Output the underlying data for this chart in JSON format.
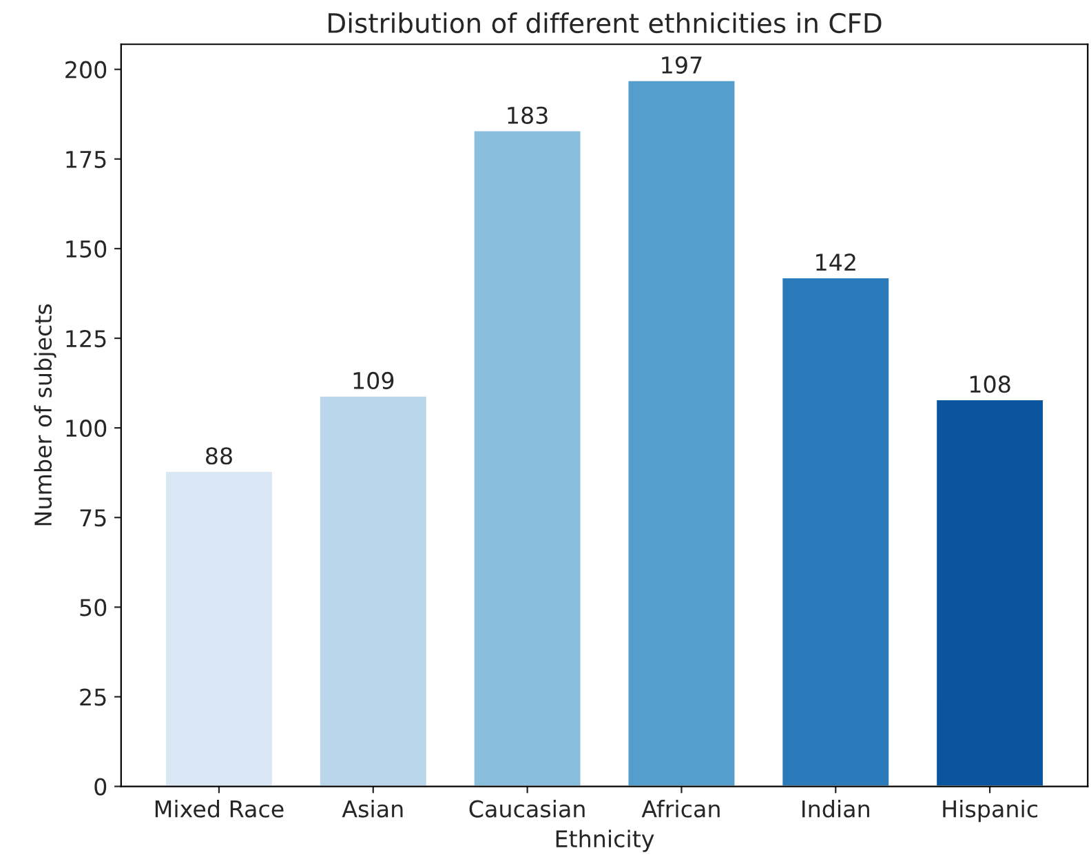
{
  "chart_data": {
    "type": "bar",
    "title": "Distribution of different ethnicities in CFD",
    "xlabel": "Ethnicity",
    "ylabel": "Number of subjects",
    "categories": [
      "Mixed Race",
      "Asian",
      "Caucasian",
      "African",
      "Indian",
      "Hispanic"
    ],
    "values": [
      88,
      109,
      183,
      197,
      142,
      108
    ],
    "colors": [
      "#dae8f5",
      "#bad6eb",
      "#89bedc",
      "#539ecd",
      "#2b7bba",
      "#0b559f"
    ],
    "ylim": [
      0,
      207
    ],
    "yticks": [
      0,
      25,
      50,
      75,
      100,
      125,
      150,
      175,
      200
    ],
    "data_labels": true,
    "grid": false
  }
}
